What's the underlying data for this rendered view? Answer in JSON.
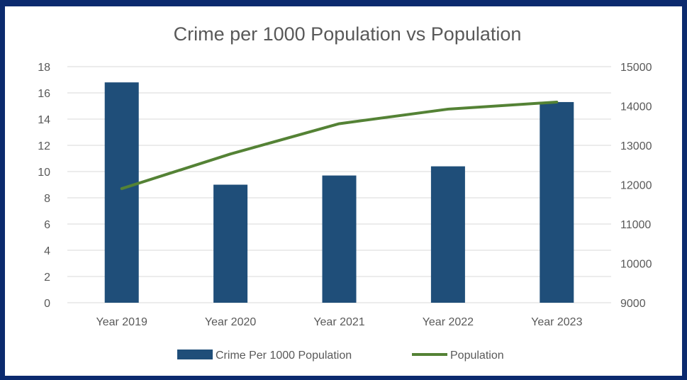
{
  "chart_data": {
    "type": "bar",
    "title": "Crime per 1000 Population vs Population",
    "categories": [
      "Year 2019",
      "Year 2020",
      "Year 2021",
      "Year 2022",
      "Year 2023"
    ],
    "series": [
      {
        "name": "Crime Per 1000 Population",
        "type": "bar",
        "axis": "left",
        "values": [
          16.8,
          9.0,
          9.7,
          10.4,
          15.3
        ],
        "color": "#1f4e79"
      },
      {
        "name": "Population",
        "type": "line",
        "axis": "right",
        "values": [
          11900,
          12780,
          13550,
          13920,
          14100
        ],
        "color": "#548235"
      }
    ],
    "y_left": {
      "ylim": [
        0,
        18
      ],
      "ticks": [
        "0",
        "2",
        "4",
        "6",
        "8",
        "10",
        "12",
        "14",
        "16",
        "18"
      ]
    },
    "y_right": {
      "ylim": [
        9000,
        15000
      ],
      "ticks": [
        "9000",
        "10000",
        "11000",
        "12000",
        "13000",
        "14000",
        "15000"
      ]
    },
    "grid": true,
    "legend": "bottom"
  }
}
